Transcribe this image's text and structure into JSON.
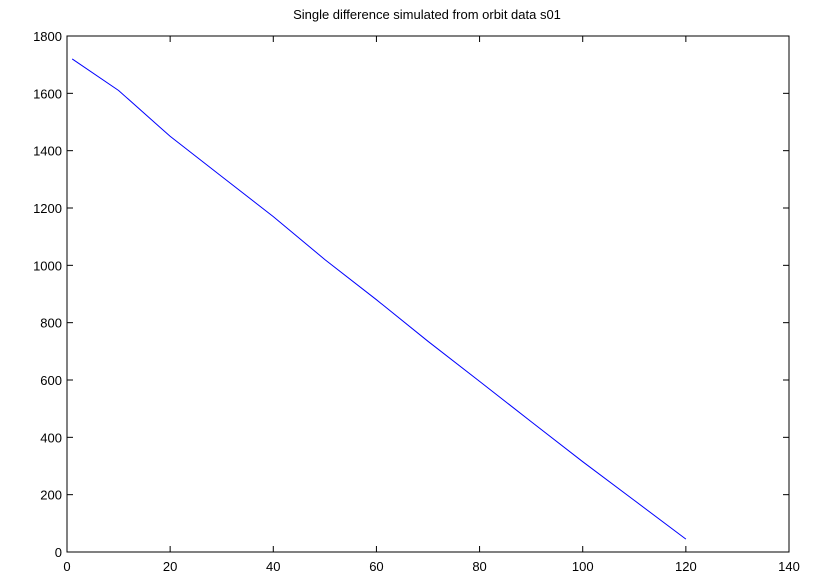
{
  "chart_data": {
    "type": "line",
    "title": "Single difference simulated from orbit data s01",
    "xlabel": "",
    "ylabel": "",
    "xlim": [
      0,
      140
    ],
    "ylim": [
      0,
      1800
    ],
    "x_ticks": [
      0,
      20,
      40,
      60,
      80,
      100,
      120,
      140
    ],
    "y_ticks": [
      0,
      200,
      400,
      600,
      800,
      1000,
      1200,
      1400,
      1600,
      1800
    ],
    "x_tick_labels": [
      "0",
      "20",
      "40",
      "60",
      "80",
      "100",
      "120",
      "140"
    ],
    "y_tick_labels": [
      "0",
      "200",
      "400",
      "600",
      "800",
      "1000",
      "1200",
      "1400",
      "1600",
      "1800"
    ],
    "grid": false,
    "series": [
      {
        "color": "#0000ff",
        "x": [
          1,
          10,
          20,
          30,
          40,
          50,
          60,
          70,
          80,
          90,
          100,
          110,
          120
        ],
        "y": [
          1720,
          1610,
          1450,
          1310,
          1170,
          1020,
          880,
          735,
          595,
          455,
          315,
          180,
          45
        ]
      }
    ]
  }
}
